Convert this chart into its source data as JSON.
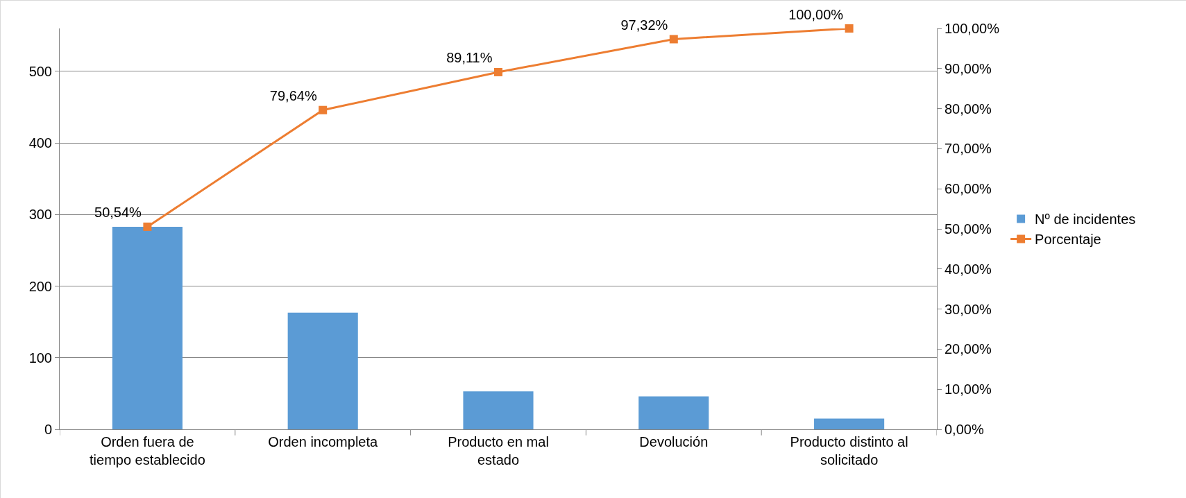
{
  "chart_data": {
    "type": "bar",
    "categories": [
      "Orden fuera de tiempo establecido",
      "Orden incompleta",
      "Producto en mal estado",
      "Devolución",
      "Producto distinto al solicitado"
    ],
    "series": [
      {
        "name": "Nº de incidentes",
        "color": "#5b9bd5",
        "values": [
          283,
          163,
          53,
          46,
          15
        ]
      },
      {
        "name": "Porcentaje",
        "type": "line",
        "axis": "y2",
        "color": "#ed7d31",
        "marker": "square",
        "line_style": "solid",
        "values": [
          50.54,
          79.64,
          89.11,
          97.32,
          100
        ],
        "value_labels": [
          "50,54%",
          "79,64%",
          "89,11%",
          "97,32%",
          "100,00%"
        ]
      }
    ],
    "ylim": [
      0,
      560
    ],
    "yticks": [
      0,
      100,
      200,
      300,
      400,
      500
    ],
    "y2lim": [
      0,
      100
    ],
    "y2ticks": [
      {
        "value": 0,
        "label": "0,00%"
      },
      {
        "value": 10,
        "label": "10,00%"
      },
      {
        "value": 20,
        "label": "20,00%"
      },
      {
        "value": 30,
        "label": "30,00%"
      },
      {
        "value": 40,
        "label": "40,00%"
      },
      {
        "value": 50,
        "label": "50,00%"
      },
      {
        "value": 60,
        "label": "60,00%"
      },
      {
        "value": 70,
        "label": "70,00%"
      },
      {
        "value": 80,
        "label": "80,00%"
      },
      {
        "value": 90,
        "label": "90,00%"
      },
      {
        "value": 100,
        "label": "100,00%"
      }
    ],
    "grid": "y",
    "legend": "right"
  }
}
